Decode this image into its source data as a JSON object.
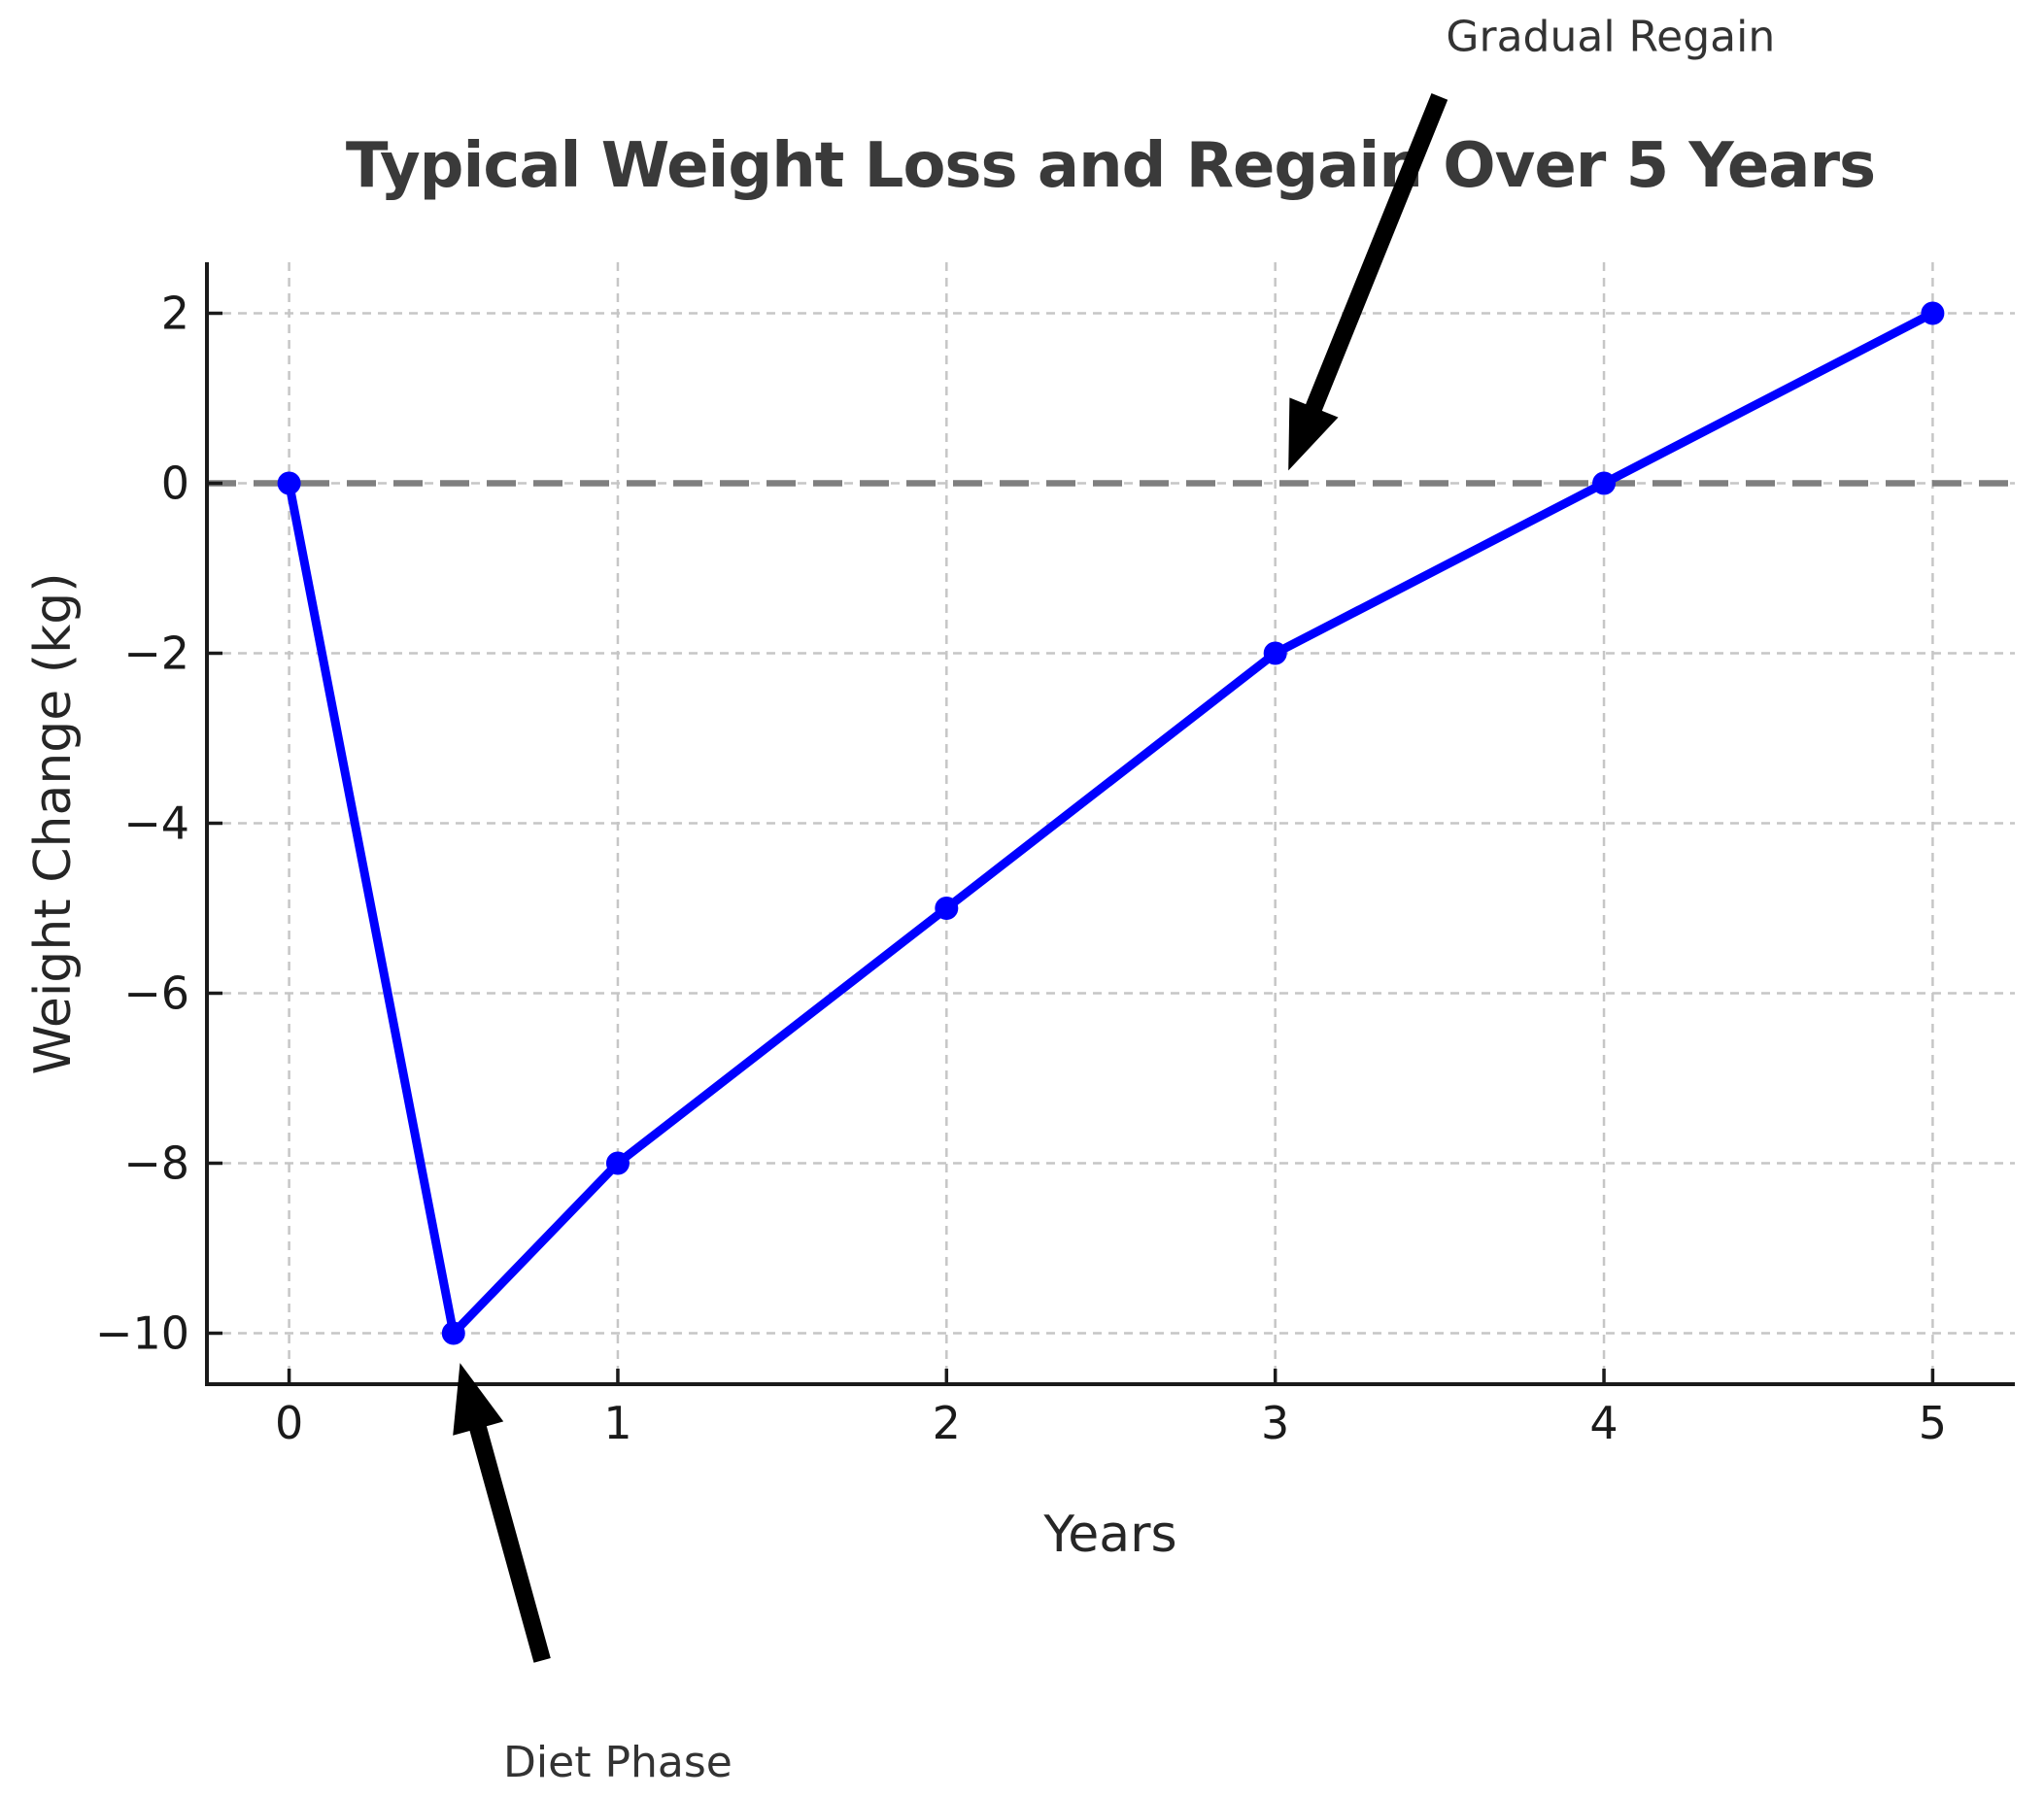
{
  "chart_data": {
    "type": "line",
    "title": "Typical Weight Loss and Regain Over 5 Years",
    "xlabel": "Years",
    "ylabel": "Weight Change (kg)",
    "x": [
      0,
      0.5,
      1,
      2,
      3,
      4,
      5
    ],
    "y": [
      0,
      -10,
      -8,
      -5,
      -2,
      0,
      2
    ],
    "series": [
      {
        "name": "Weight Change",
        "color": "#0000ff",
        "marker": "circle",
        "line_style": "solid"
      }
    ],
    "xlim": [
      -0.25,
      5.25
    ],
    "ylim": [
      -10.6,
      2.6
    ],
    "xticks": {
      "values": [
        0,
        1,
        2,
        3,
        4,
        5
      ],
      "labels": [
        "0",
        "1",
        "2",
        "3",
        "4",
        "5"
      ]
    },
    "yticks": {
      "values": [
        2,
        0,
        -2,
        -4,
        -6,
        -8,
        -10
      ],
      "labels": [
        "2",
        "0",
        "−2",
        "−4",
        "−6",
        "−8",
        "−10"
      ]
    },
    "grid": true,
    "grid_style": "dashed",
    "legend": "none",
    "zero_line": {
      "y": 0,
      "color": "#7f7f7f",
      "style": "dashed"
    },
    "annotations": [
      {
        "text": "Gradual Regain",
        "text_xy": [
          4.02,
          5.25
        ],
        "arrow_tail": [
          3.5,
          4.55
        ],
        "arrow_tip": [
          3.04,
          0.15
        ],
        "arrow_color": "#000000"
      },
      {
        "text": "Diet Phase",
        "text_xy": [
          1.0,
          -15.05
        ],
        "arrow_tail": [
          0.77,
          -13.85
        ],
        "arrow_tip": [
          0.52,
          -10.35
        ],
        "arrow_color": "#000000"
      }
    ],
    "colors": {
      "line": "#0000ff",
      "grid": "#c6c6c6",
      "spine": "#1a1a1a",
      "tick": "#1a1a1a",
      "zero_line": "#7f7f7f",
      "title": "#3a3a3a",
      "annotation_text": "#333333",
      "background": "#ffffff"
    }
  }
}
